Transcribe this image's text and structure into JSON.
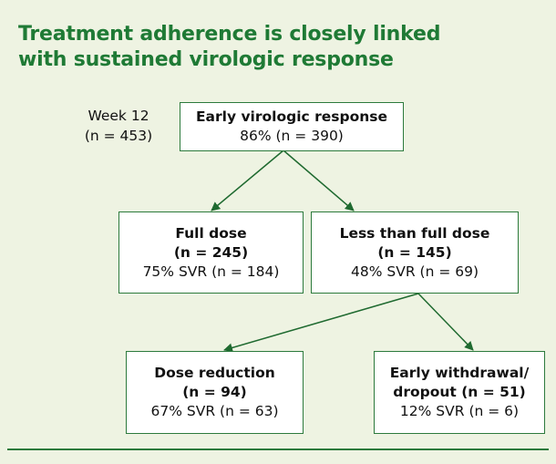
{
  "title": [
    "Treatment adherence is closely linked",
    "with sustained virologic response"
  ],
  "timepoint": {
    "label": "Week 12",
    "n": "(n = 453)"
  },
  "nodes": [
    {
      "lines": [
        "Early virologic response",
        "86% (n = 390)"
      ]
    },
    {
      "lines": [
        "Full dose",
        "(n = 245)",
        "75% SVR (n = 184)"
      ]
    },
    {
      "lines": [
        "Less than full dose",
        "(n = 145)",
        "48% SVR (n = 69)"
      ]
    },
    {
      "lines": [
        "Dose reduction",
        "(n = 94)",
        "67% SVR (n = 63)"
      ]
    },
    {
      "lines": [
        "Early withdrawal/",
        "dropout (n = 51)",
        "12% SVR (n = 6)"
      ]
    }
  ]
}
